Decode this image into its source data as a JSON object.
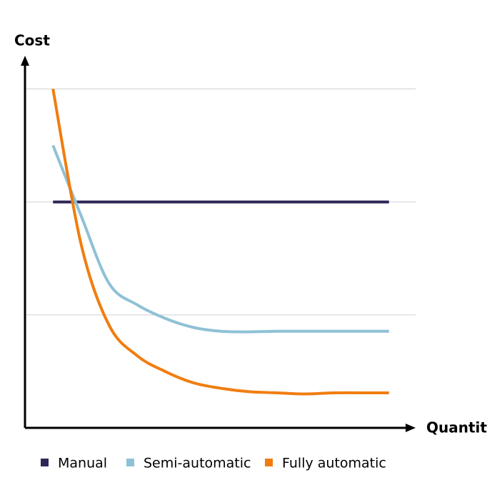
{
  "chart_data": {
    "type": "line",
    "y_label": "Cost",
    "x_label": "Quantity",
    "x": [
      1,
      2,
      3,
      4,
      5,
      6,
      7,
      8,
      9,
      10,
      11,
      12,
      13
    ],
    "xlim": [
      0,
      13.9
    ],
    "ylim": [
      0,
      3.25
    ],
    "yticks": [
      1,
      2,
      3
    ],
    "grid": true,
    "series": [
      {
        "name": "Manual",
        "color": "#2e2657",
        "values": [
          2,
          2,
          2,
          2,
          2,
          2,
          2,
          2,
          2,
          2,
          2,
          2,
          2
        ]
      },
      {
        "name": "Semi-automatic",
        "color": "#8fc1d6",
        "values": [
          2.5,
          1.88,
          1.28,
          1.09,
          0.97,
          0.89,
          0.855,
          0.85,
          0.855,
          0.855,
          0.855,
          0.855,
          0.855
        ]
      },
      {
        "name": "Fully automatic",
        "color": "#f07d10",
        "values": [
          3.0,
          1.63,
          0.91,
          0.64,
          0.5,
          0.4,
          0.35,
          0.32,
          0.31,
          0.3,
          0.31,
          0.31,
          0.31
        ]
      }
    ]
  }
}
